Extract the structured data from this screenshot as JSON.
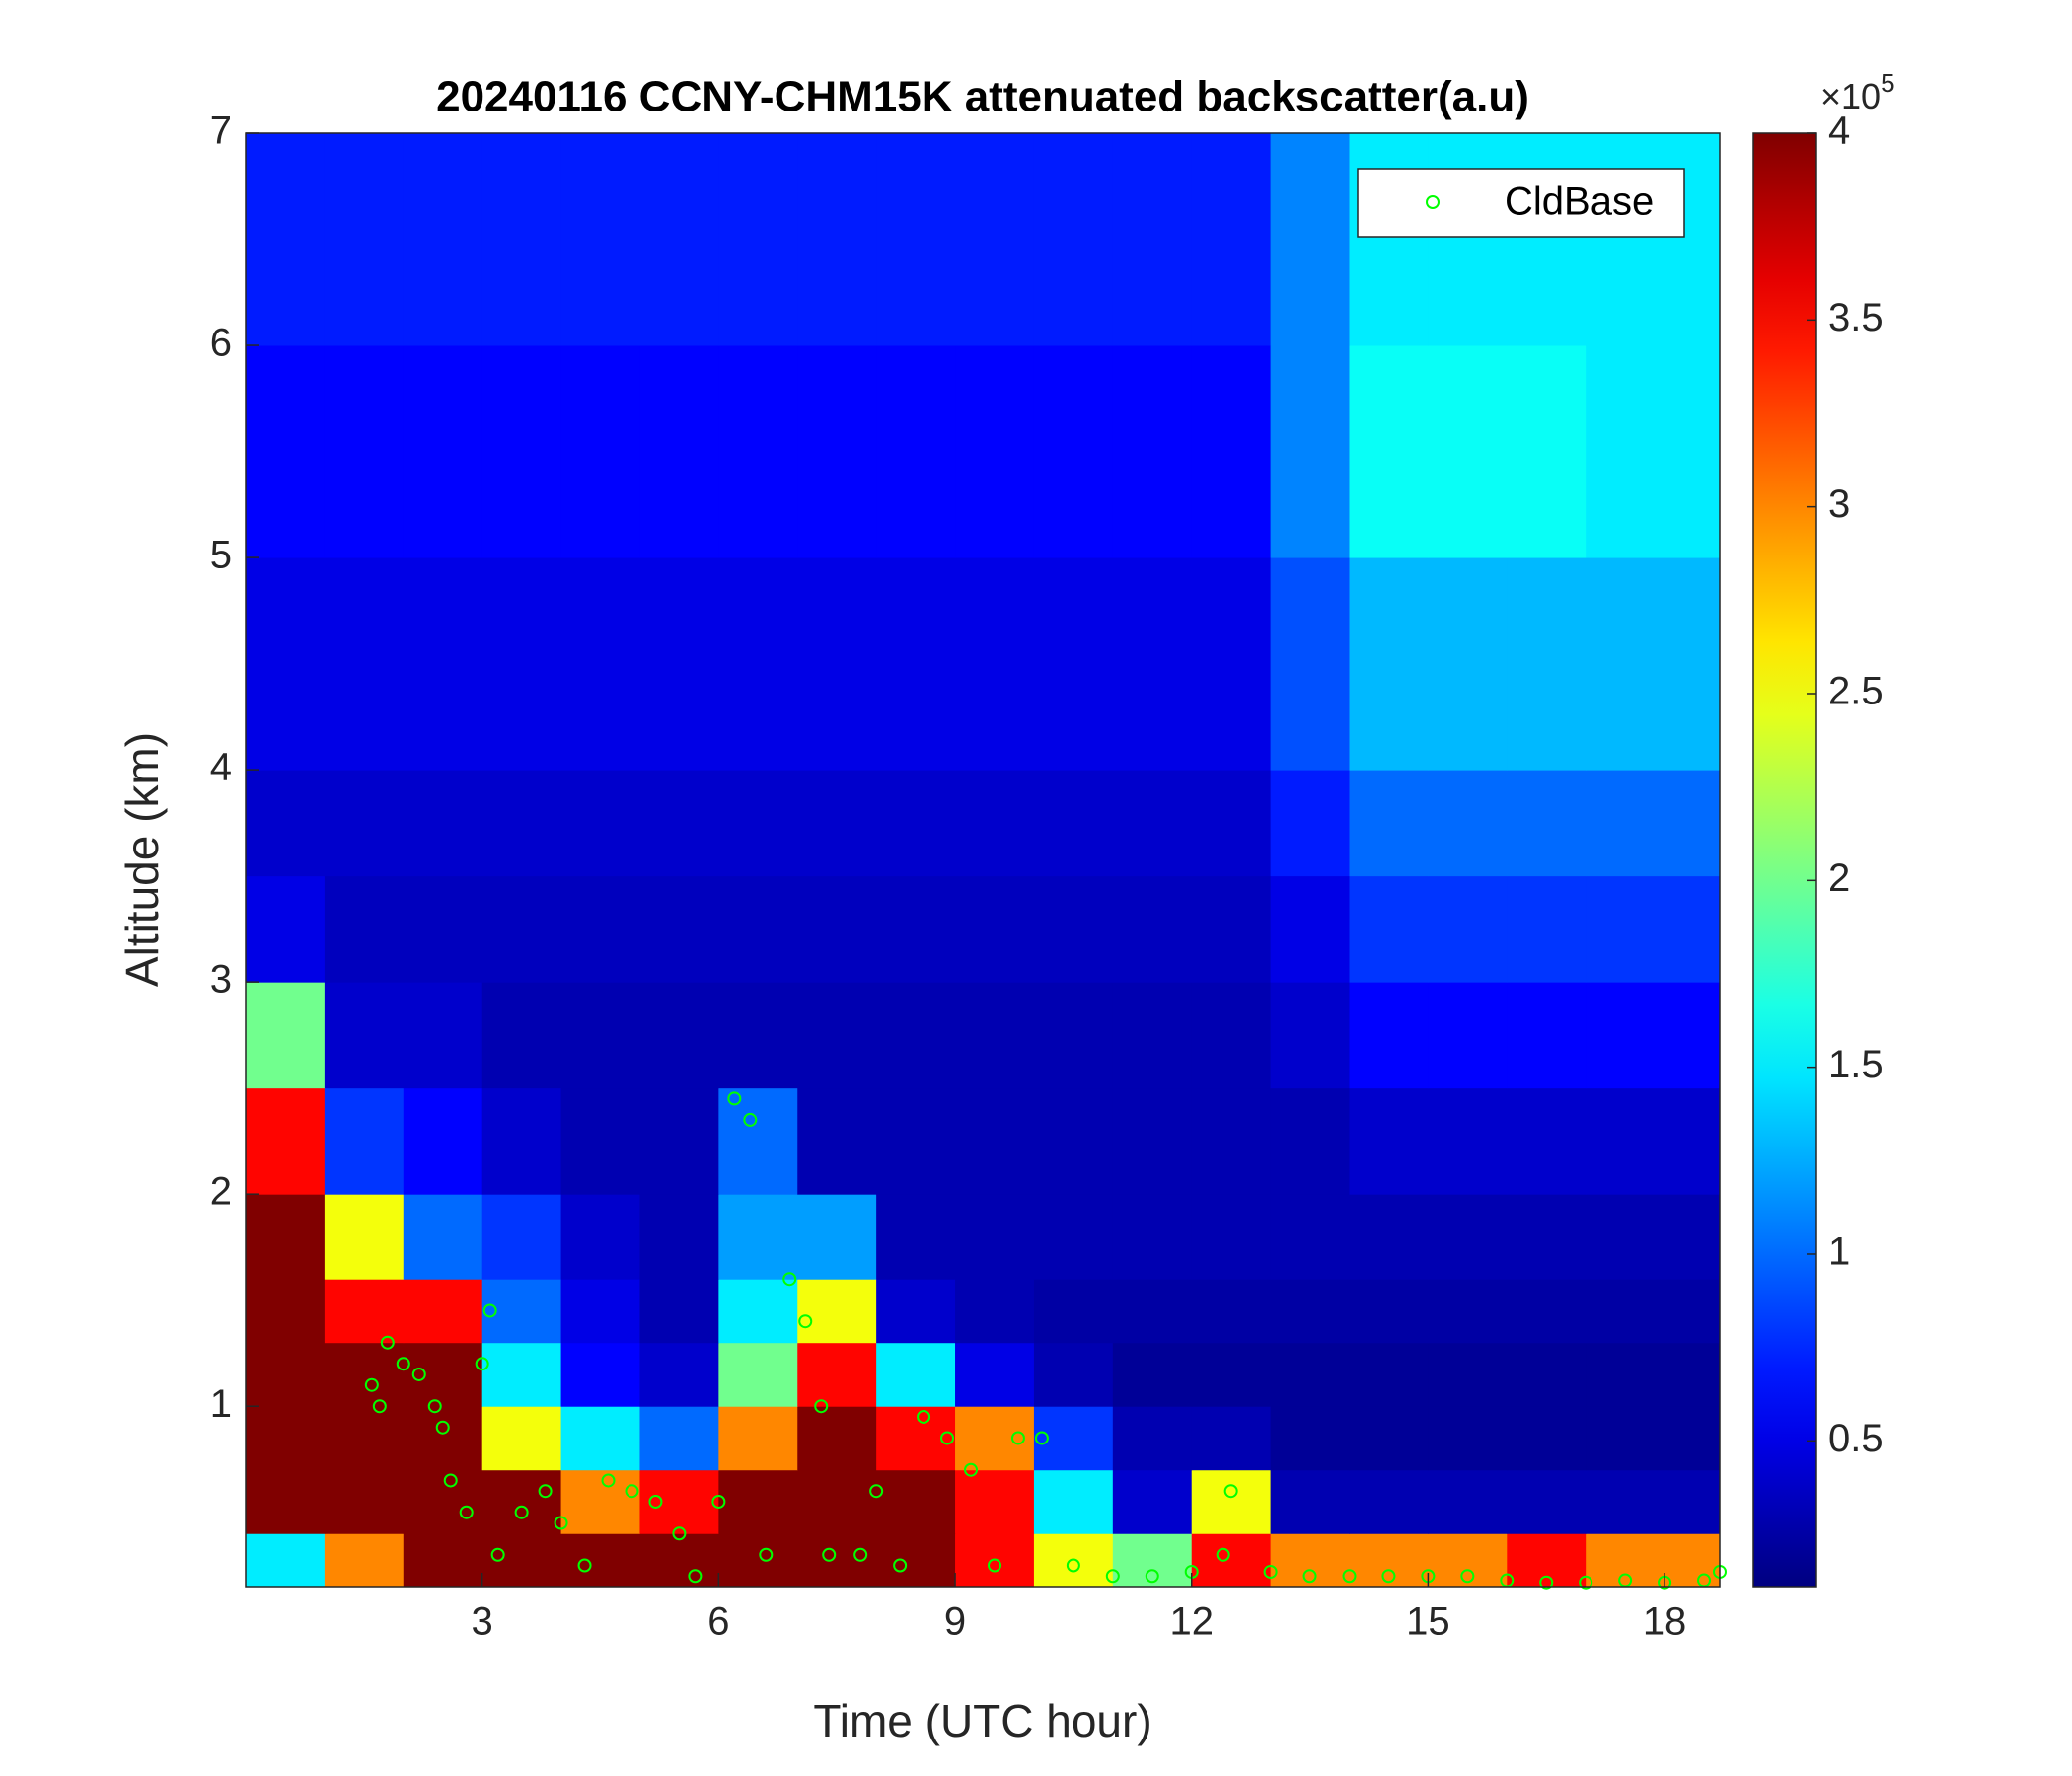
{
  "chart_data": {
    "type": "heatmap",
    "title": "20240116 CCNY-CHM15K attenuated backscatter(a.u)",
    "xlabel": "Time (UTC hour)",
    "ylabel": "Altitude (km)",
    "xlim": [
      0,
      18.7
    ],
    "ylim": [
      0.15,
      7
    ],
    "xticks": [
      3,
      6,
      9,
      12,
      15,
      18
    ],
    "yticks": [
      1,
      2,
      3,
      4,
      5,
      6,
      7
    ],
    "x_edges": [
      0,
      1,
      2,
      3,
      4,
      5,
      6,
      7,
      8,
      9,
      10,
      11,
      12,
      13,
      14,
      15,
      16,
      17,
      18,
      18.7
    ],
    "y_edges": [
      0.15,
      0.4,
      0.7,
      1,
      1.3,
      1.6,
      2,
      2.5,
      3,
      3.5,
      4,
      5,
      6,
      7
    ],
    "z": [
      [
        1.5,
        3,
        4,
        4,
        4,
        4,
        4,
        4,
        4,
        3.5,
        2.5,
        2,
        3.5,
        3,
        3,
        3,
        3.5,
        3,
        3
      ],
      [
        4,
        4,
        4,
        4,
        3,
        3.5,
        4,
        4,
        4,
        3.5,
        1.5,
        0.4,
        2.5,
        0.3,
        0.3,
        0.3,
        0.3,
        0.3,
        0.3
      ],
      [
        4,
        4,
        4,
        2.5,
        1.5,
        1,
        3,
        4,
        3.5,
        3,
        0.8,
        0.3,
        0.3,
        0.2,
        0.2,
        0.2,
        0.2,
        0.2,
        0.2
      ],
      [
        4,
        4,
        4,
        1.5,
        0.6,
        0.4,
        2,
        3.5,
        1.5,
        0.5,
        0.3,
        0.2,
        0.2,
        0.2,
        0.2,
        0.2,
        0.2,
        0.2,
        0.2
      ],
      [
        4,
        3.5,
        3.5,
        1,
        0.5,
        0.3,
        1.5,
        2.5,
        0.4,
        0.3,
        0.25,
        0.25,
        0.25,
        0.25,
        0.25,
        0.25,
        0.25,
        0.25,
        0.25
      ],
      [
        4,
        2.5,
        1,
        0.8,
        0.4,
        0.3,
        1.2,
        1.2,
        0.3,
        0.3,
        0.3,
        0.3,
        0.3,
        0.3,
        0.3,
        0.3,
        0.3,
        0.3,
        0.3
      ],
      [
        3.5,
        0.8,
        0.6,
        0.4,
        0.3,
        0.3,
        1,
        0.3,
        0.3,
        0.3,
        0.3,
        0.3,
        0.3,
        0.3,
        0.4,
        0.4,
        0.4,
        0.4,
        0.4
      ],
      [
        2,
        0.4,
        0.4,
        0.3,
        0.3,
        0.3,
        0.3,
        0.3,
        0.3,
        0.3,
        0.3,
        0.3,
        0.3,
        0.4,
        0.6,
        0.6,
        0.6,
        0.6,
        0.6
      ],
      [
        0.5,
        0.35,
        0.35,
        0.35,
        0.35,
        0.35,
        0.35,
        0.35,
        0.35,
        0.35,
        0.35,
        0.35,
        0.35,
        0.5,
        0.8,
        0.8,
        0.8,
        0.8,
        0.8
      ],
      [
        0.4,
        0.4,
        0.4,
        0.4,
        0.4,
        0.4,
        0.4,
        0.4,
        0.4,
        0.4,
        0.4,
        0.4,
        0.4,
        0.7,
        1,
        1,
        1,
        1,
        1
      ],
      [
        0.5,
        0.5,
        0.5,
        0.5,
        0.5,
        0.5,
        0.5,
        0.5,
        0.5,
        0.5,
        0.5,
        0.5,
        0.5,
        0.9,
        1.3,
        1.3,
        1.3,
        1.3,
        1.3
      ],
      [
        0.6,
        0.6,
        0.6,
        0.6,
        0.6,
        0.6,
        0.6,
        0.6,
        0.6,
        0.6,
        0.6,
        0.6,
        0.6,
        1.1,
        1.6,
        1.6,
        1.6,
        1.5,
        1.5
      ],
      [
        0.7,
        0.7,
        0.7,
        0.7,
        0.7,
        0.7,
        0.7,
        0.7,
        0.7,
        0.7,
        0.7,
        0.7,
        0.7,
        1.1,
        1.5,
        1.5,
        1.5,
        1.5,
        1.5
      ]
    ],
    "colormap": "jet",
    "clim": [
      0.11,
      4
    ],
    "cticks": [
      0.5,
      1,
      1.5,
      2,
      2.5,
      3,
      3.5,
      4
    ],
    "colorbar_multiplier": "×10",
    "colorbar_exponent": "5",
    "legend": "upper right",
    "series": [
      {
        "name": "CldBase",
        "type": "scatter",
        "color": "#00ff00",
        "x": [
          1.6,
          1.7,
          1.8,
          2.0,
          2.2,
          2.4,
          2.5,
          2.6,
          2.8,
          3.0,
          3.1,
          3.2,
          3.5,
          3.8,
          4.0,
          4.3,
          4.6,
          4.9,
          5.2,
          5.5,
          5.7,
          6.0,
          6.2,
          6.4,
          6.6,
          6.9,
          7.1,
          7.3,
          7.4,
          7.8,
          8.0,
          8.3,
          8.6,
          8.9,
          9.2,
          9.5,
          9.8,
          10.1,
          10.5,
          11.0,
          11.5,
          12.0,
          12.4,
          12.5,
          13.0,
          13.5,
          14.0,
          14.5,
          15.0,
          15.5,
          16.0,
          16.5,
          17.0,
          17.5,
          18.0,
          18.5,
          18.7
        ],
        "values": [
          1.1,
          1.0,
          1.3,
          1.2,
          1.15,
          1.0,
          0.9,
          0.65,
          0.5,
          1.2,
          1.45,
          0.3,
          0.5,
          0.6,
          0.45,
          0.25,
          0.65,
          0.6,
          0.55,
          0.4,
          0.2,
          0.55,
          2.45,
          2.35,
          0.3,
          1.6,
          1.4,
          1.0,
          0.3,
          0.3,
          0.6,
          0.25,
          0.95,
          0.85,
          0.7,
          0.25,
          0.85,
          0.85,
          0.25,
          0.2,
          0.2,
          0.22,
          0.3,
          0.6,
          0.22,
          0.2,
          0.2,
          0.2,
          0.2,
          0.2,
          0.18,
          0.17,
          0.17,
          0.18,
          0.17,
          0.18,
          0.22
        ]
      }
    ]
  }
}
